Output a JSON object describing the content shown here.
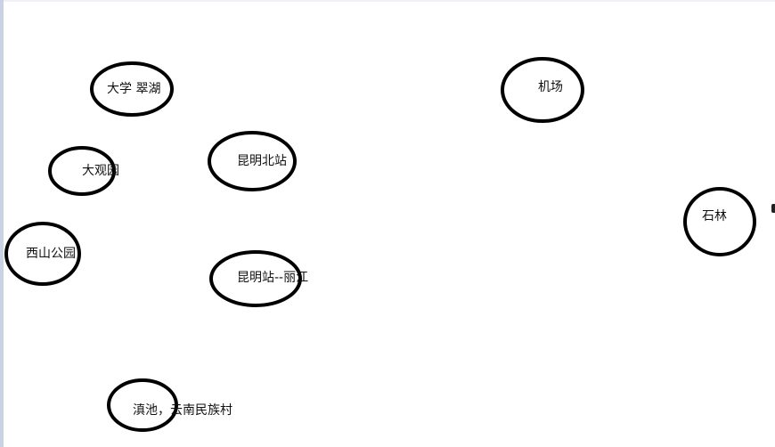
{
  "colors": {
    "background": "#ffffff",
    "stroke": "#000000",
    "text": "#111111"
  },
  "nodes": [
    {
      "id": "university-cuihu",
      "label": "大学 翠湖"
    },
    {
      "id": "airport",
      "label": "机场"
    },
    {
      "id": "daguanyuan",
      "label": "大观园"
    },
    {
      "id": "kunming-north-station",
      "label": "昆明北站"
    },
    {
      "id": "stone-forest",
      "label": "石林"
    },
    {
      "id": "xishan-park",
      "label": "西山公园"
    },
    {
      "id": "kunming-station-lijiang",
      "label": "昆明站--丽江"
    },
    {
      "id": "dianchi-ethnic-village",
      "label": "滇池，云南民族村"
    }
  ]
}
